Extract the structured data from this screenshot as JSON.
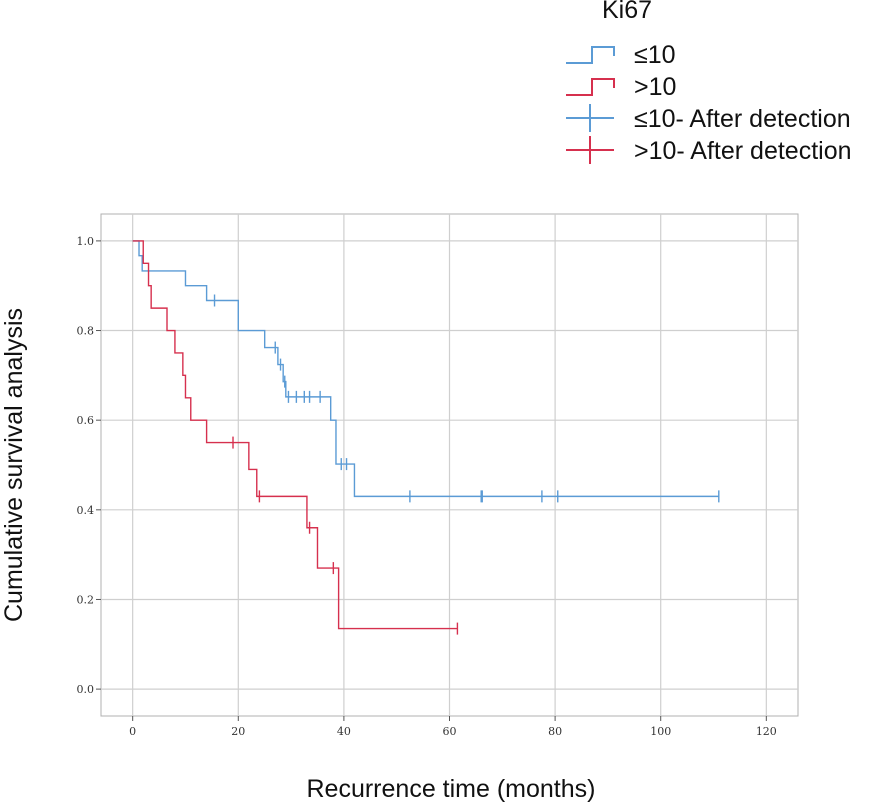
{
  "chart_data": {
    "type": "line",
    "subtype": "kaplan-meier",
    "title": "",
    "xlabel": "Recurrence time (months)",
    "ylabel": "Cumulative survival analysis",
    "xlim": [
      -6,
      126
    ],
    "ylim": [
      -0.06,
      1.06
    ],
    "xticks": [
      "0",
      "20",
      "40",
      "60",
      "80",
      "100",
      "120"
    ],
    "yticks": [
      "0.0",
      "0.2",
      "0.4",
      "0.6",
      "0.8",
      "1.0"
    ],
    "grid": true,
    "legend": {
      "title": "Ki67",
      "position": "top-right",
      "entries": [
        "≤10",
        ">10",
        "≤10- After detection",
        ">10- After detection"
      ]
    },
    "series": [
      {
        "name": "≤10",
        "color": "#5b9bd5",
        "steps": [
          [
            0,
            1.0
          ],
          [
            1.2,
            0.967
          ],
          [
            1.8,
            0.933
          ],
          [
            10,
            0.9
          ],
          [
            14,
            0.867
          ],
          [
            20,
            0.8
          ],
          [
            25,
            0.762
          ],
          [
            27.5,
            0.724
          ],
          [
            28.5,
            0.686
          ],
          [
            29,
            0.652
          ],
          [
            37.5,
            0.6
          ],
          [
            38.5,
            0.502
          ],
          [
            42,
            0.43
          ],
          [
            111,
            0.43
          ]
        ],
        "censored": [
          [
            15.5,
            0.867
          ],
          [
            27,
            0.762
          ],
          [
            28,
            0.724
          ],
          [
            28.8,
            0.686
          ],
          [
            29.5,
            0.652
          ],
          [
            31,
            0.652
          ],
          [
            32.5,
            0.652
          ],
          [
            33.5,
            0.652
          ],
          [
            35.5,
            0.652
          ],
          [
            39.5,
            0.502
          ],
          [
            40.5,
            0.502
          ],
          [
            52.5,
            0.43
          ],
          [
            66,
            0.43
          ],
          [
            66.2,
            0.43
          ],
          [
            77.5,
            0.43
          ],
          [
            80.5,
            0.43
          ],
          [
            111,
            0.43
          ]
        ]
      },
      {
        "name": ">10",
        "color": "#d6304e",
        "steps": [
          [
            0,
            1.0
          ],
          [
            2,
            0.95
          ],
          [
            3,
            0.9
          ],
          [
            3.5,
            0.85
          ],
          [
            6.5,
            0.8
          ],
          [
            8,
            0.75
          ],
          [
            9.5,
            0.7
          ],
          [
            10,
            0.65
          ],
          [
            11,
            0.6
          ],
          [
            14,
            0.55
          ],
          [
            22,
            0.49
          ],
          [
            23.5,
            0.43
          ],
          [
            33,
            0.36
          ],
          [
            35,
            0.27
          ],
          [
            39,
            0.135
          ],
          [
            61.5,
            0.135
          ]
        ],
        "censored": [
          [
            19,
            0.55
          ],
          [
            24,
            0.43
          ],
          [
            33.5,
            0.36
          ],
          [
            38,
            0.27
          ],
          [
            61.5,
            0.135
          ]
        ]
      }
    ]
  }
}
